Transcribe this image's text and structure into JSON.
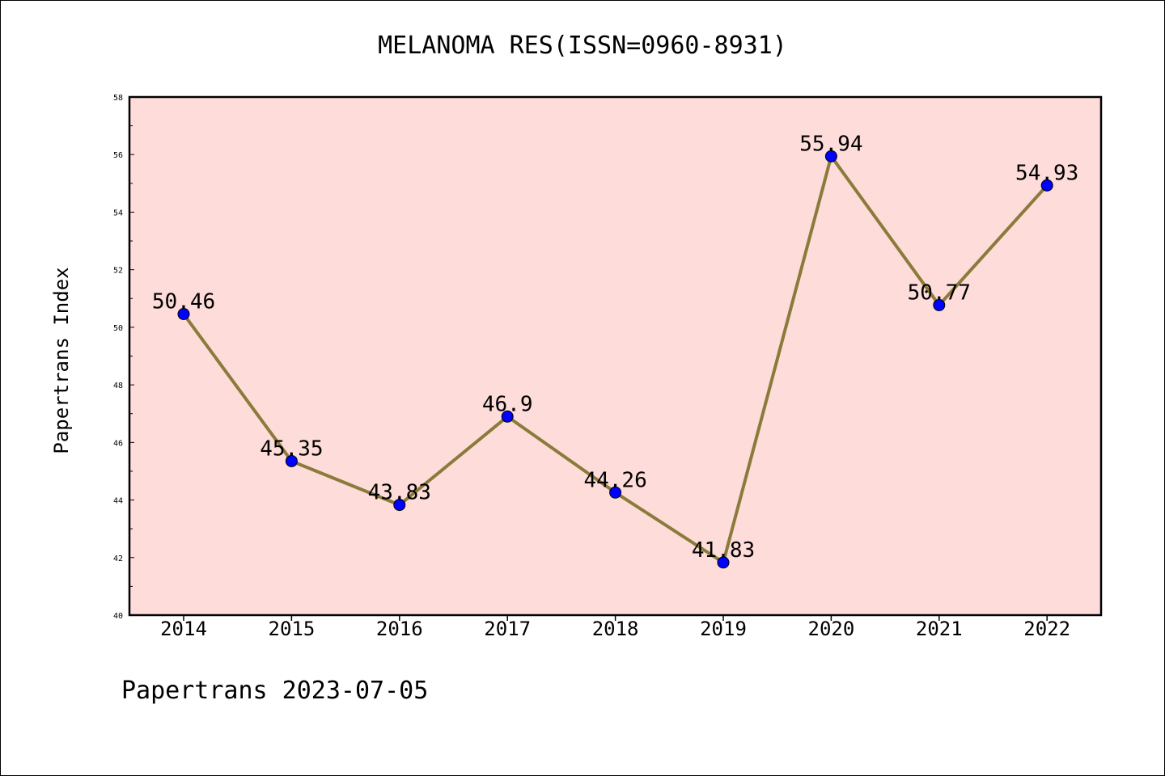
{
  "chart_data": {
    "type": "line",
    "title": "MELANOMA RES(ISSN=0960-8931)",
    "xlabel": "",
    "ylabel": "Papertrans Index",
    "categories": [
      "2014",
      "2015",
      "2016",
      "2017",
      "2018",
      "2019",
      "2020",
      "2021",
      "2022"
    ],
    "series": [
      {
        "values": [
          50.46,
          45.35,
          43.83,
          46.9,
          44.26,
          41.83,
          55.94,
          50.77,
          54.93
        ],
        "value_labels": [
          "50.46",
          "45.35",
          "43.83",
          "46.9",
          "44.26",
          "41.83",
          "55.94",
          "50.77",
          "54.93"
        ],
        "line_color": "#8B7B3A",
        "marker_color": "#0000FF"
      }
    ],
    "ylim": [
      40,
      58
    ],
    "yticks": [
      "40",
      "42",
      "44",
      "46",
      "48",
      "50",
      "52",
      "54",
      "56",
      "58"
    ],
    "grid": false,
    "legend": "none",
    "plot_background": "#FDDCDA"
  },
  "footer": "Papertrans 2023-07-05"
}
